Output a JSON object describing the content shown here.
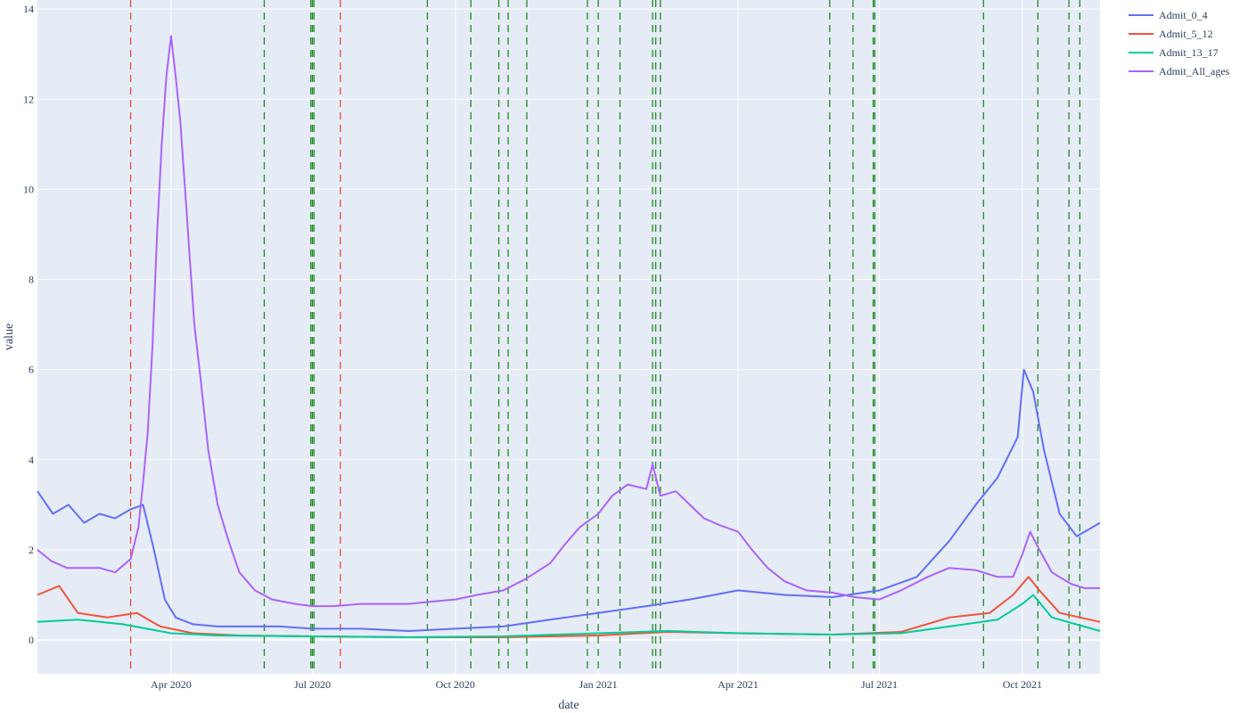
{
  "chart_data": {
    "type": "line",
    "title": "",
    "xlabel": "date",
    "ylabel": "value",
    "xlim": [
      "2020-01-06",
      "2021-11-20"
    ],
    "ylim": [
      -0.75,
      14.2
    ],
    "y_ticks": [
      0,
      2,
      4,
      6,
      8,
      10,
      12,
      14
    ],
    "x_ticks": [
      {
        "date": "2020-04-01",
        "label": "Apr 2020"
      },
      {
        "date": "2020-07-01",
        "label": "Jul 2020"
      },
      {
        "date": "2020-10-01",
        "label": "Oct 2020"
      },
      {
        "date": "2021-01-01",
        "label": "Jan 2021"
      },
      {
        "date": "2021-04-01",
        "label": "Apr 2021"
      },
      {
        "date": "2021-07-01",
        "label": "Jul 2021"
      },
      {
        "date": "2021-10-01",
        "label": "Oct 2021"
      }
    ],
    "grid": true,
    "legend_position": "top-right",
    "series": [
      {
        "name": "Admit_0_4",
        "color": "#636efa",
        "points": [
          [
            "2020-01-06",
            3.3
          ],
          [
            "2020-01-16",
            2.8
          ],
          [
            "2020-01-26",
            3.0
          ],
          [
            "2020-02-05",
            2.6
          ],
          [
            "2020-02-15",
            2.8
          ],
          [
            "2020-02-25",
            2.7
          ],
          [
            "2020-03-06",
            2.9
          ],
          [
            "2020-03-14",
            3.0
          ],
          [
            "2020-03-21",
            2.0
          ],
          [
            "2020-03-28",
            0.9
          ],
          [
            "2020-04-04",
            0.5
          ],
          [
            "2020-04-15",
            0.35
          ],
          [
            "2020-05-01",
            0.3
          ],
          [
            "2020-05-20",
            0.3
          ],
          [
            "2020-06-10",
            0.3
          ],
          [
            "2020-07-01",
            0.25
          ],
          [
            "2020-08-01",
            0.25
          ],
          [
            "2020-09-01",
            0.2
          ],
          [
            "2020-10-01",
            0.25
          ],
          [
            "2020-11-01",
            0.3
          ],
          [
            "2020-12-01",
            0.45
          ],
          [
            "2021-01-01",
            0.6
          ],
          [
            "2021-02-01",
            0.75
          ],
          [
            "2021-03-01",
            0.9
          ],
          [
            "2021-04-01",
            1.1
          ],
          [
            "2021-05-01",
            1.0
          ],
          [
            "2021-06-01",
            0.95
          ],
          [
            "2021-07-01",
            1.1
          ],
          [
            "2021-07-25",
            1.4
          ],
          [
            "2021-08-15",
            2.2
          ],
          [
            "2021-09-01",
            3.0
          ],
          [
            "2021-09-15",
            3.6
          ],
          [
            "2021-09-28",
            4.5
          ],
          [
            "2021-10-02",
            6.0
          ],
          [
            "2021-10-08",
            5.5
          ],
          [
            "2021-10-15",
            4.2
          ],
          [
            "2021-10-25",
            2.8
          ],
          [
            "2021-11-05",
            2.3
          ],
          [
            "2021-11-20",
            2.6
          ]
        ]
      },
      {
        "name": "Admit_5_12",
        "color": "#ef553b",
        "points": [
          [
            "2020-01-06",
            1.0
          ],
          [
            "2020-01-20",
            1.2
          ],
          [
            "2020-02-01",
            0.6
          ],
          [
            "2020-02-20",
            0.5
          ],
          [
            "2020-03-10",
            0.6
          ],
          [
            "2020-03-25",
            0.3
          ],
          [
            "2020-04-15",
            0.15
          ],
          [
            "2020-05-15",
            0.1
          ],
          [
            "2020-07-01",
            0.08
          ],
          [
            "2020-09-01",
            0.06
          ],
          [
            "2020-11-01",
            0.06
          ],
          [
            "2021-01-01",
            0.1
          ],
          [
            "2021-02-15",
            0.18
          ],
          [
            "2021-04-01",
            0.15
          ],
          [
            "2021-06-01",
            0.12
          ],
          [
            "2021-07-15",
            0.18
          ],
          [
            "2021-08-15",
            0.5
          ],
          [
            "2021-09-10",
            0.6
          ],
          [
            "2021-09-25",
            1.0
          ],
          [
            "2021-10-05",
            1.4
          ],
          [
            "2021-10-12",
            1.1
          ],
          [
            "2021-10-25",
            0.6
          ],
          [
            "2021-11-20",
            0.4
          ]
        ]
      },
      {
        "name": "Admit_13_17",
        "color": "#00cc96",
        "points": [
          [
            "2020-01-06",
            0.4
          ],
          [
            "2020-02-01",
            0.45
          ],
          [
            "2020-03-01",
            0.35
          ],
          [
            "2020-04-01",
            0.15
          ],
          [
            "2020-05-01",
            0.1
          ],
          [
            "2020-07-01",
            0.08
          ],
          [
            "2020-09-01",
            0.06
          ],
          [
            "2020-11-01",
            0.08
          ],
          [
            "2021-01-01",
            0.15
          ],
          [
            "2021-02-15",
            0.2
          ],
          [
            "2021-04-01",
            0.15
          ],
          [
            "2021-06-01",
            0.12
          ],
          [
            "2021-07-15",
            0.15
          ],
          [
            "2021-08-15",
            0.3
          ],
          [
            "2021-09-15",
            0.45
          ],
          [
            "2021-10-01",
            0.8
          ],
          [
            "2021-10-08",
            1.0
          ],
          [
            "2021-10-20",
            0.5
          ],
          [
            "2021-11-20",
            0.2
          ]
        ]
      },
      {
        "name": "Admit_All_ages",
        "color": "#ab63fa",
        "points": [
          [
            "2020-01-06",
            2.0
          ],
          [
            "2020-01-15",
            1.75
          ],
          [
            "2020-01-25",
            1.6
          ],
          [
            "2020-02-05",
            1.6
          ],
          [
            "2020-02-15",
            1.6
          ],
          [
            "2020-02-25",
            1.5
          ],
          [
            "2020-03-06",
            1.8
          ],
          [
            "2020-03-11",
            2.5
          ],
          [
            "2020-03-14",
            3.5
          ],
          [
            "2020-03-17",
            4.6
          ],
          [
            "2020-03-20",
            6.5
          ],
          [
            "2020-03-23",
            9.0
          ],
          [
            "2020-03-26",
            11.0
          ],
          [
            "2020-03-29",
            12.5
          ],
          [
            "2020-04-01",
            13.4
          ],
          [
            "2020-04-04",
            12.5
          ],
          [
            "2020-04-07",
            11.5
          ],
          [
            "2020-04-10",
            10.0
          ],
          [
            "2020-04-13",
            8.5
          ],
          [
            "2020-04-16",
            7.0
          ],
          [
            "2020-04-20",
            5.8
          ],
          [
            "2020-04-25",
            4.2
          ],
          [
            "2020-05-01",
            3.0
          ],
          [
            "2020-05-08",
            2.2
          ],
          [
            "2020-05-15",
            1.5
          ],
          [
            "2020-05-25",
            1.1
          ],
          [
            "2020-06-05",
            0.9
          ],
          [
            "2020-06-20",
            0.8
          ],
          [
            "2020-07-01",
            0.75
          ],
          [
            "2020-07-15",
            0.75
          ],
          [
            "2020-08-01",
            0.8
          ],
          [
            "2020-08-15",
            0.8
          ],
          [
            "2020-09-01",
            0.8
          ],
          [
            "2020-09-15",
            0.85
          ],
          [
            "2020-10-01",
            0.9
          ],
          [
            "2020-10-15",
            1.0
          ],
          [
            "2020-11-01",
            1.1
          ],
          [
            "2020-11-15",
            1.35
          ],
          [
            "2020-12-01",
            1.7
          ],
          [
            "2020-12-10",
            2.1
          ],
          [
            "2020-12-20",
            2.5
          ],
          [
            "2021-01-01",
            2.8
          ],
          [
            "2021-01-10",
            3.2
          ],
          [
            "2021-01-20",
            3.45
          ],
          [
            "2021-02-01",
            3.35
          ],
          [
            "2021-02-05",
            3.9
          ],
          [
            "2021-02-10",
            3.2
          ],
          [
            "2021-02-20",
            3.3
          ],
          [
            "2021-03-01",
            3.0
          ],
          [
            "2021-03-10",
            2.7
          ],
          [
            "2021-03-20",
            2.55
          ],
          [
            "2021-04-01",
            2.4
          ],
          [
            "2021-04-10",
            2.0
          ],
          [
            "2021-04-20",
            1.6
          ],
          [
            "2021-05-01",
            1.3
          ],
          [
            "2021-05-15",
            1.1
          ],
          [
            "2021-06-01",
            1.05
          ],
          [
            "2021-06-15",
            0.95
          ],
          [
            "2021-07-01",
            0.9
          ],
          [
            "2021-07-15",
            1.1
          ],
          [
            "2021-08-01",
            1.4
          ],
          [
            "2021-08-15",
            1.6
          ],
          [
            "2021-09-01",
            1.55
          ],
          [
            "2021-09-15",
            1.4
          ],
          [
            "2021-09-25",
            1.4
          ],
          [
            "2021-10-01",
            1.9
          ],
          [
            "2021-10-06",
            2.4
          ],
          [
            "2021-10-12",
            2.0
          ],
          [
            "2021-10-20",
            1.5
          ],
          [
            "2021-11-01",
            1.25
          ],
          [
            "2021-11-10",
            1.15
          ],
          [
            "2021-11-20",
            1.15
          ]
        ]
      }
    ],
    "vlines": [
      {
        "date": "2020-03-06",
        "color": "#e74c3c"
      },
      {
        "date": "2020-07-19",
        "color": "#e74c3c"
      },
      {
        "date": "2020-05-31",
        "color": "#228b22"
      },
      {
        "date": "2020-06-30",
        "color": "#228b22"
      },
      {
        "date": "2020-07-01",
        "color": "#228b22"
      },
      {
        "date": "2020-07-02",
        "color": "#228b22"
      },
      {
        "date": "2020-09-13",
        "color": "#228b22"
      },
      {
        "date": "2020-10-11",
        "color": "#228b22"
      },
      {
        "date": "2020-10-29",
        "color": "#228b22"
      },
      {
        "date": "2020-11-04",
        "color": "#228b22"
      },
      {
        "date": "2020-11-16",
        "color": "#228b22"
      },
      {
        "date": "2020-12-25",
        "color": "#228b22"
      },
      {
        "date": "2021-01-01",
        "color": "#228b22"
      },
      {
        "date": "2021-01-15",
        "color": "#228b22"
      },
      {
        "date": "2021-02-05",
        "color": "#228b22"
      },
      {
        "date": "2021-02-07",
        "color": "#228b22"
      },
      {
        "date": "2021-02-10",
        "color": "#228b22"
      },
      {
        "date": "2021-05-30",
        "color": "#228b22"
      },
      {
        "date": "2021-06-14",
        "color": "#228b22"
      },
      {
        "date": "2021-06-27",
        "color": "#228b22"
      },
      {
        "date": "2021-06-28",
        "color": "#228b22"
      },
      {
        "date": "2021-09-06",
        "color": "#228b22"
      },
      {
        "date": "2021-10-11",
        "color": "#228b22"
      },
      {
        "date": "2021-10-31",
        "color": "#228b22"
      },
      {
        "date": "2021-11-07",
        "color": "#228b22"
      }
    ]
  }
}
